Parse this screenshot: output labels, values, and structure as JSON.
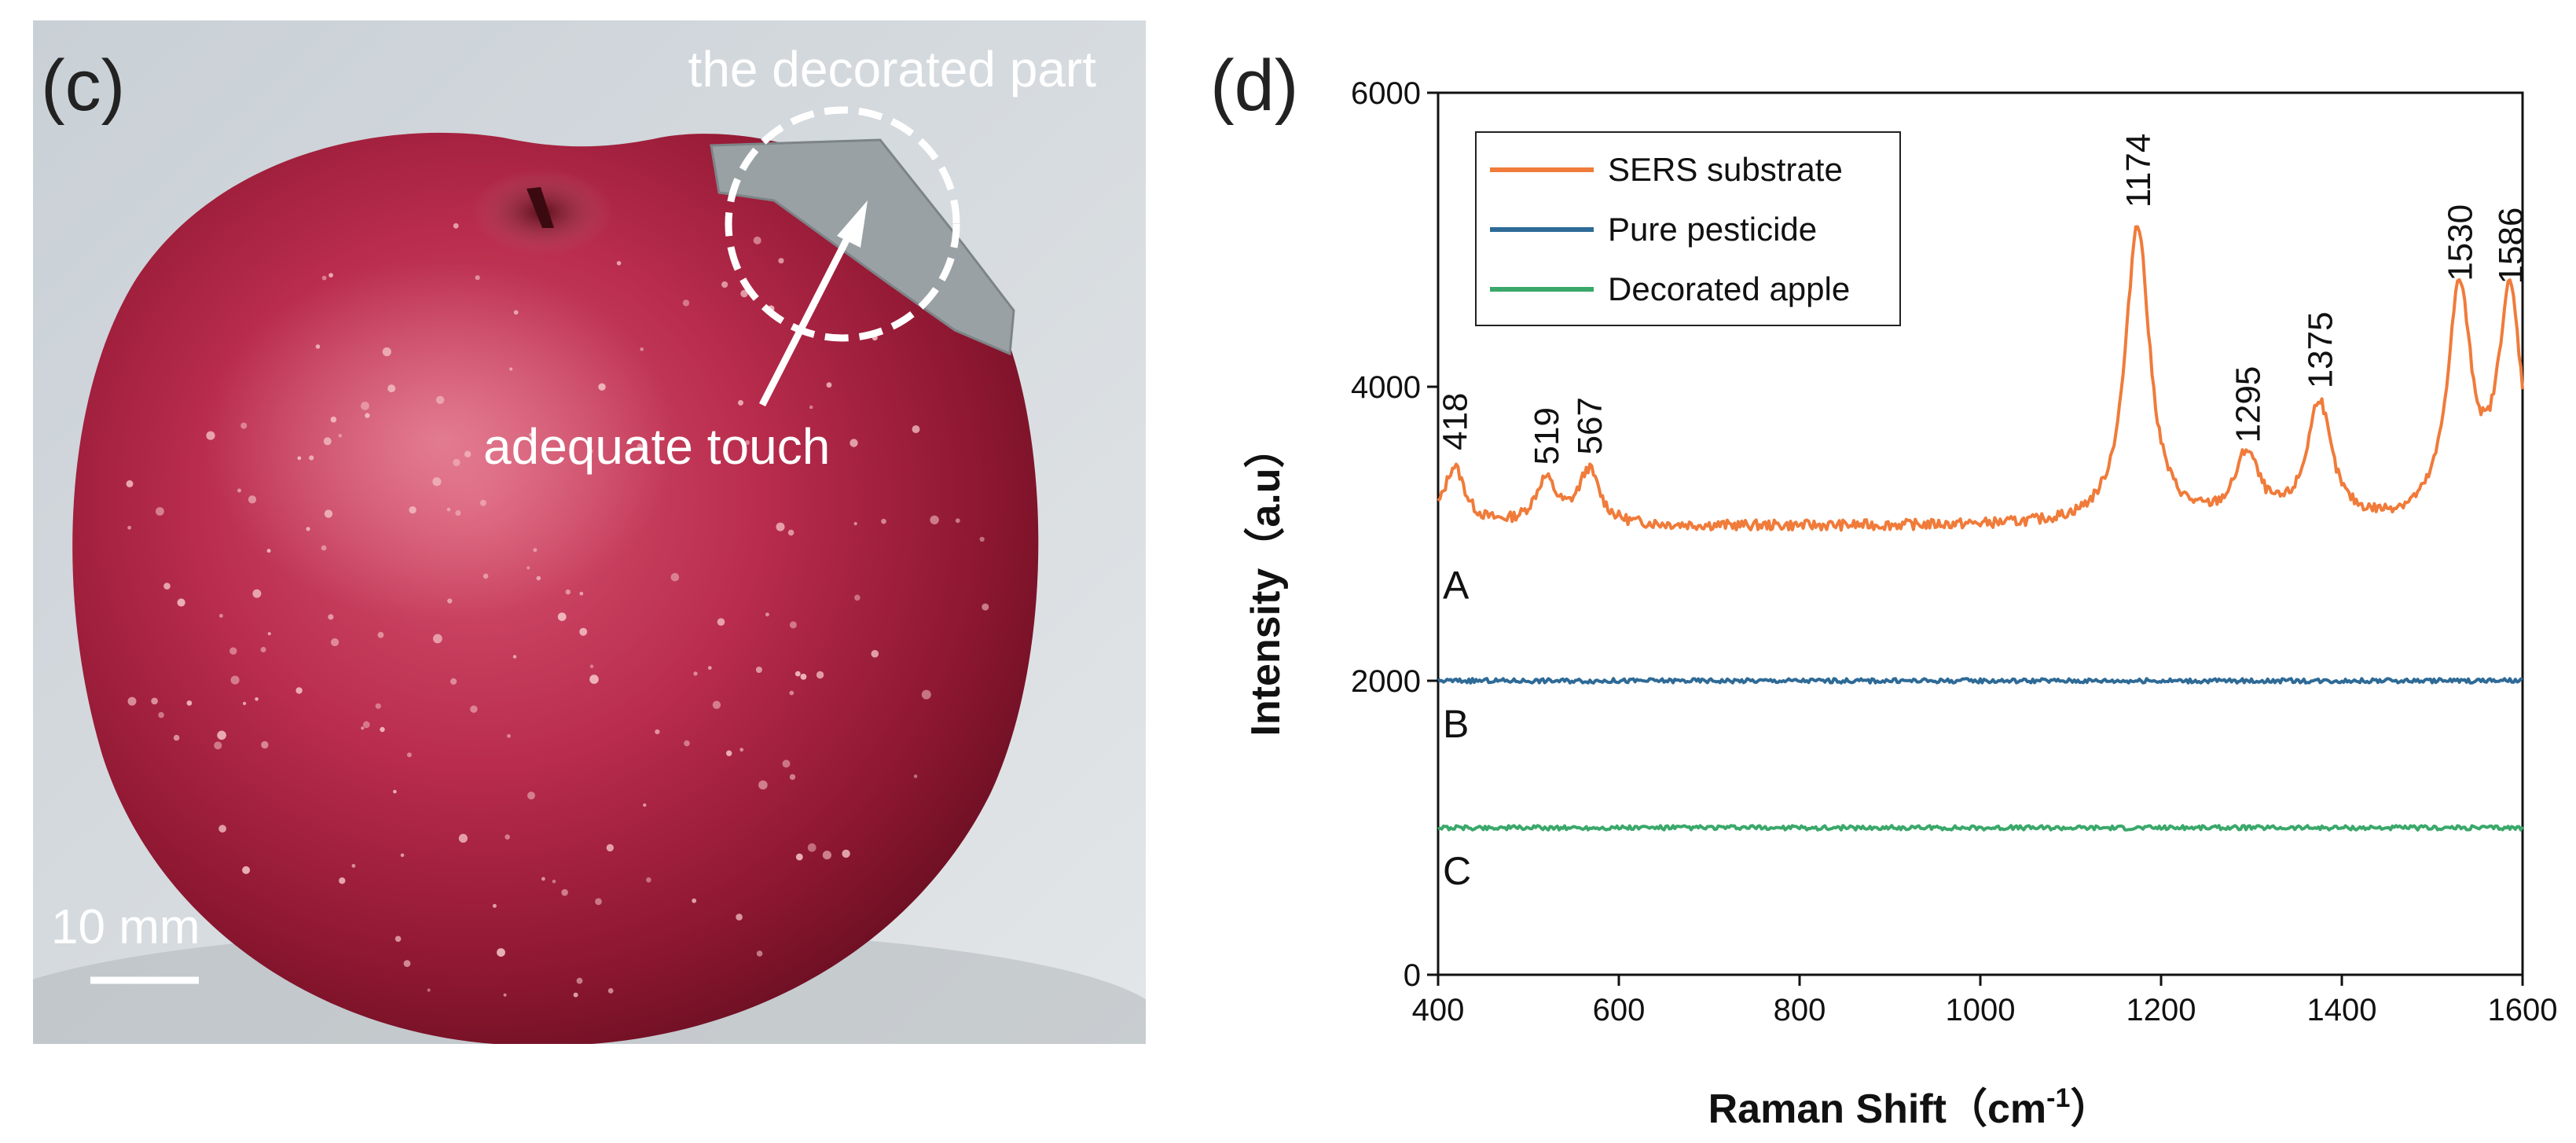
{
  "panel_c": {
    "label": "(c)",
    "annotation_top": "the decorated part",
    "annotation_arrow": "adequate touch",
    "scale_bar": "10 mm"
  },
  "panel_d": {
    "label": "(d)"
  },
  "chart_data": {
    "type": "line",
    "title": "",
    "xlabel": "Raman Shift（cm⁻¹）",
    "xlabel_main": "Raman Shift（cm",
    "xlabel_sup": "-1",
    "xlabel_close": "）",
    "ylabel": "Intensity（a.u）",
    "xlim": [
      400,
      1600
    ],
    "ylim": [
      0,
      6000
    ],
    "xticks": [
      400,
      600,
      800,
      1000,
      1200,
      1400,
      1600
    ],
    "yticks": [
      0,
      2000,
      4000,
      6000
    ],
    "grid": false,
    "legend_position": "top-left",
    "series": [
      {
        "name": "SERS substrate",
        "curve_label": "A",
        "color": "#f07b3a",
        "baseline": 3050,
        "peaks": [
          {
            "x": 418,
            "y": 3450,
            "label": "418"
          },
          {
            "x": 519,
            "y": 3350,
            "label": "519"
          },
          {
            "x": 567,
            "y": 3420,
            "label": "567"
          },
          {
            "x": 1174,
            "y": 5100,
            "label": "1174"
          },
          {
            "x": 1295,
            "y": 3500,
            "label": "1295"
          },
          {
            "x": 1375,
            "y": 3870,
            "label": "1375"
          },
          {
            "x": 1530,
            "y": 4600,
            "label": "1530"
          },
          {
            "x": 1586,
            "y": 4580,
            "label": "1586"
          }
        ]
      },
      {
        "name": "Pure pesticide",
        "curve_label": "B",
        "color": "#2e6a96",
        "baseline": 2000,
        "peaks": []
      },
      {
        "name": "Decorated apple",
        "curve_label": "C",
        "color": "#3aa86a",
        "baseline": 1000,
        "peaks": []
      }
    ]
  }
}
